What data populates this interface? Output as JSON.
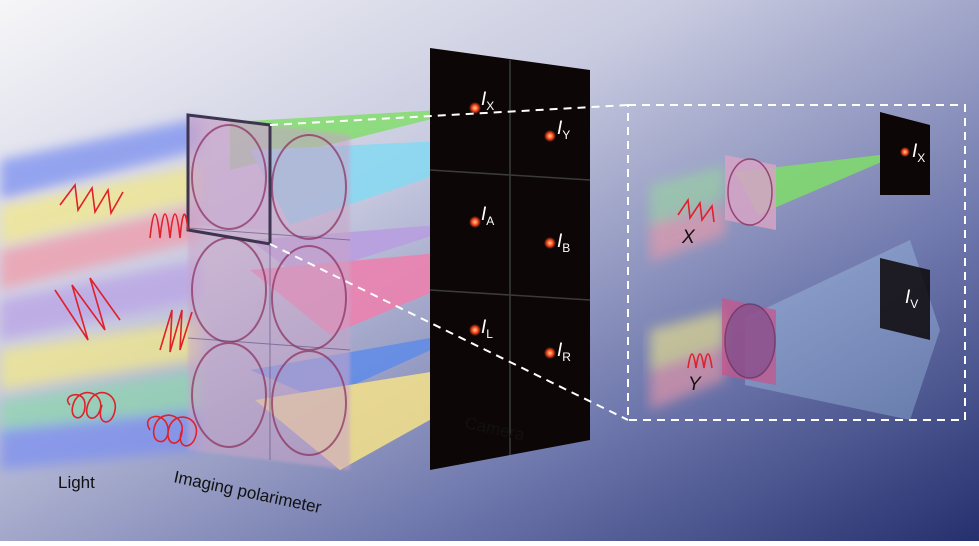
{
  "labels": {
    "light": "Light",
    "imaging_polarimeter": "Imaging polarimeter",
    "camera": "Camera"
  },
  "camera_spots": [
    {
      "main": "I",
      "sub": "X"
    },
    {
      "main": "I",
      "sub": "Y"
    },
    {
      "main": "I",
      "sub": "A"
    },
    {
      "main": "I",
      "sub": "B"
    },
    {
      "main": "I",
      "sub": "L"
    },
    {
      "main": "I",
      "sub": "R"
    }
  ],
  "inset": {
    "top_input_label": "X",
    "top_output": {
      "main": "I",
      "sub": "X"
    },
    "bottom_input_label": "Y",
    "bottom_output": {
      "main": "I",
      "sub": "V"
    }
  },
  "colors": {
    "background_left": "#f4f4f6",
    "background_right": "#26306f",
    "green": "#7fdc6a",
    "cyan": "#7fd7f2",
    "purple": "#b59ae0",
    "pink": "#ef7aa9",
    "blue": "#5d8ae8",
    "yellow": "#f7e58a",
    "wave": "#e0202a",
    "camera": "#0c0607"
  }
}
